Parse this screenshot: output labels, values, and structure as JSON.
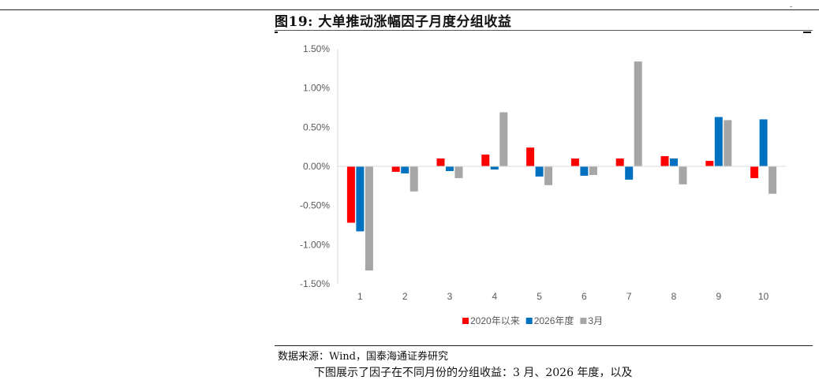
{
  "document": {
    "figure_title": "图19:  大单推动涨幅因子月度分组收益",
    "source_note": "数据来源：Wind，国泰海通证券研究",
    "body_text_fragment": "下图展示了因子在不同月份的分组收益：3 月、2026 年度，以及"
  },
  "chart_data": {
    "type": "bar",
    "title": "",
    "xlabel": "",
    "ylabel": "",
    "categories": [
      "1",
      "2",
      "3",
      "4",
      "5",
      "6",
      "7",
      "8",
      "9",
      "10"
    ],
    "ylim": [
      -1.5,
      1.5
    ],
    "yticks": [
      1.5,
      1.0,
      0.5,
      0.0,
      -0.5,
      -1.0,
      -1.5
    ],
    "ytick_labels": [
      "1.50%",
      "1.00%",
      "0.50%",
      "0.00%",
      "-0.50%",
      "-1.00%",
      "-1.50%"
    ],
    "unit": "%",
    "legend_position": "bottom",
    "grid": false,
    "series": [
      {
        "name": "2020年以来",
        "color": "#ff0000",
        "values": [
          -0.72,
          -0.07,
          0.1,
          0.15,
          0.24,
          0.1,
          0.1,
          0.13,
          0.07,
          -0.15
        ]
      },
      {
        "name": "2026年度",
        "color": "#0070c0",
        "values": [
          -0.83,
          -0.09,
          -0.06,
          -0.04,
          -0.13,
          -0.12,
          -0.17,
          0.1,
          0.63,
          0.6
        ]
      },
      {
        "name": "3月",
        "color": "#a6a6a6",
        "values": [
          -1.33,
          -0.32,
          -0.15,
          0.69,
          -0.24,
          -0.11,
          1.34,
          -0.23,
          0.59,
          -0.35
        ]
      }
    ]
  }
}
